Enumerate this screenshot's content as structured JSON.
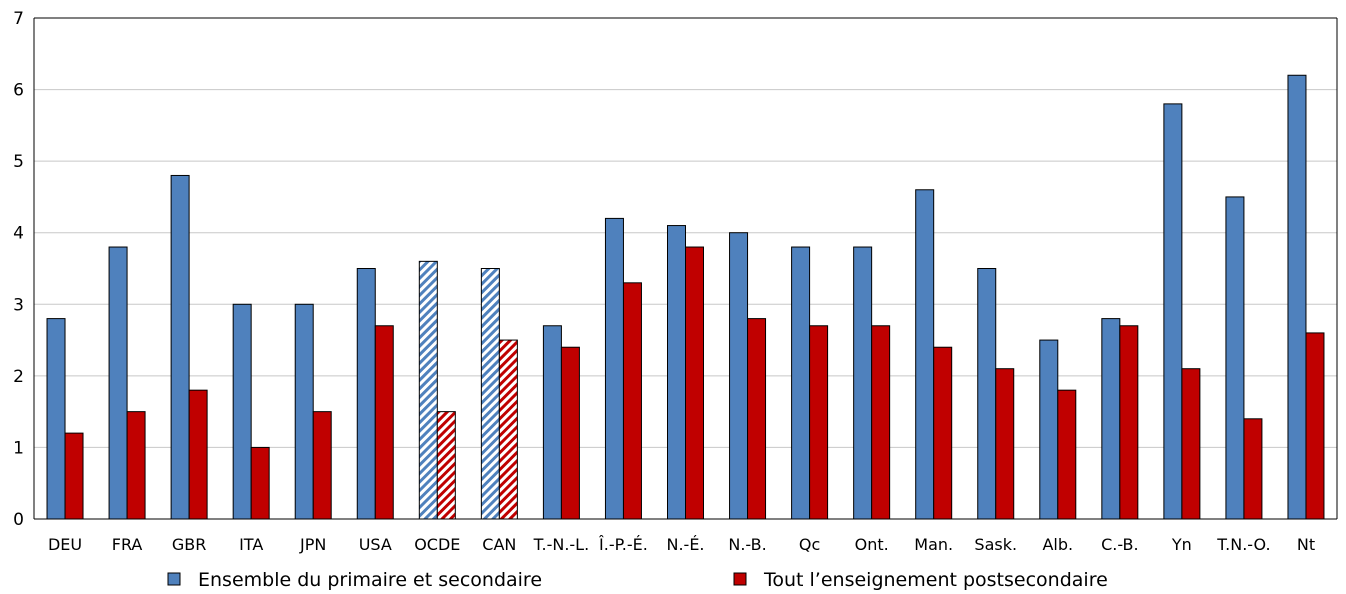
{
  "chart_data": {
    "type": "bar",
    "categories": [
      "DEU",
      "FRA",
      "GBR",
      "ITA",
      "JPN",
      "USA",
      "OCDE",
      "CAN",
      "T.-N.-L.",
      "Î.-P.-É.",
      "N.-É.",
      "N.-B.",
      "Qc",
      "Ont.",
      "Man.",
      "Sask.",
      "Alb.",
      "C.-B.",
      "Yn",
      "T.N.-O.",
      "Nt"
    ],
    "series": [
      {
        "name": "Ensemble du primaire et secondaire",
        "color": "#4F81BD",
        "values": [
          2.8,
          3.8,
          4.8,
          3.0,
          3.0,
          3.5,
          3.6,
          3.5,
          2.7,
          4.2,
          4.1,
          4.0,
          3.8,
          3.8,
          4.6,
          3.5,
          2.5,
          2.8,
          5.8,
          4.5,
          6.2
        ]
      },
      {
        "name": "Tout l’enseignement postsecondaire",
        "color": "#C00000",
        "values": [
          1.2,
          1.5,
          1.8,
          1.0,
          1.5,
          2.7,
          1.5,
          2.5,
          2.4,
          3.3,
          3.8,
          2.8,
          2.7,
          2.7,
          2.4,
          2.1,
          1.8,
          2.7,
          2.1,
          1.4,
          2.6
        ]
      }
    ],
    "hatched_categories": [
      "OCDE",
      "CAN"
    ],
    "ylim": [
      0,
      7
    ],
    "yticks": [
      "0",
      "1",
      "2",
      "3",
      "4",
      "5",
      "6",
      "7"
    ],
    "grid": true,
    "legend_position": "bottom",
    "title": "",
    "xlabel": "",
    "ylabel": ""
  }
}
